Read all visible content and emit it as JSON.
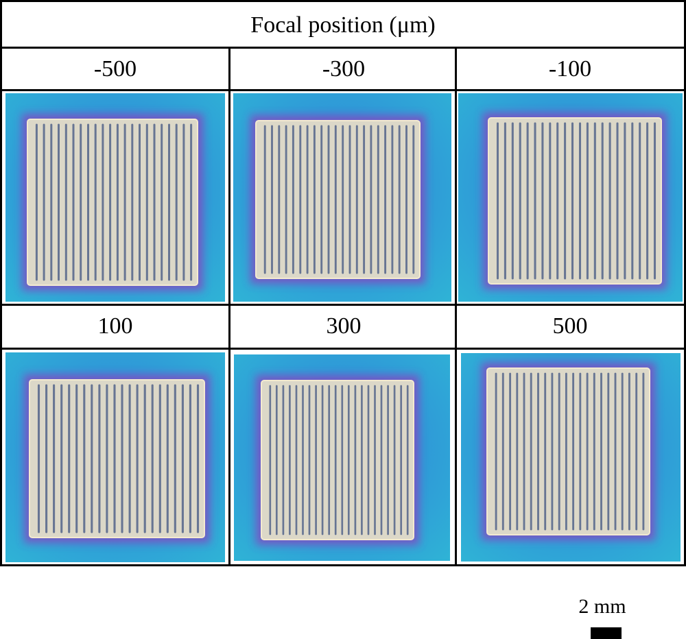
{
  "figure": {
    "title": "Focal position (μm)",
    "columns_top": [
      "-500",
      "-300",
      "-100"
    ],
    "columns_bottom": [
      "100",
      "300",
      "500"
    ],
    "scale_bar": {
      "label": "2 mm"
    },
    "colors": {
      "background": "#2f7fd9",
      "background_edge": "#2fb4d6",
      "halo": "#8a3fc0",
      "sample": "#dcd8c8",
      "line": "#4a5d86"
    }
  }
}
